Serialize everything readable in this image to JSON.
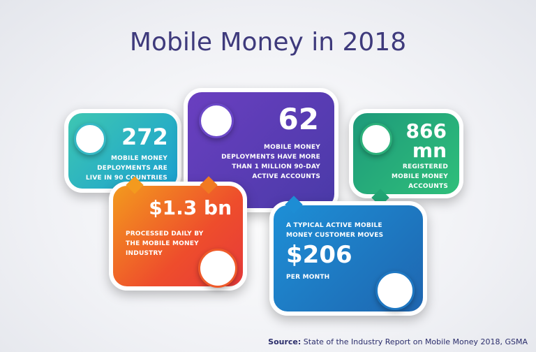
{
  "title": "Mobile Money in 2018",
  "cards": [
    {
      "number": "272",
      "lines": [
        "MOBILE MONEY",
        "DEPLOYMENTS ARE",
        "LIVE IN 90 COUNTRIES"
      ]
    },
    {
      "number": "62",
      "lines": [
        "MOBILE MONEY",
        "DEPLOYMENTS HAVE MORE",
        "THAN 1 MILLION 90-DAY",
        "ACTIVE ACCOUNTS"
      ]
    },
    {
      "number": [
        "866",
        "mn"
      ],
      "lines": [
        "REGISTERED",
        "MOBILE MONEY",
        "ACCOUNTS"
      ]
    },
    {
      "number": "$1.3 bn",
      "lines": [
        "PROCESSED DAILY BY",
        "THE MOBILE MONEY",
        "INDUSTRY"
      ]
    },
    {
      "lines_before": [
        "A TYPICAL ACTIVE MOBILE",
        "MONEY CUSTOMER MOVES"
      ],
      "number": "$206",
      "lines": [
        "PER MONTH"
      ]
    }
  ],
  "source": {
    "label": "Source:",
    "text": "State of the Industry Report on Mobile Money 2018, GSMA"
  }
}
